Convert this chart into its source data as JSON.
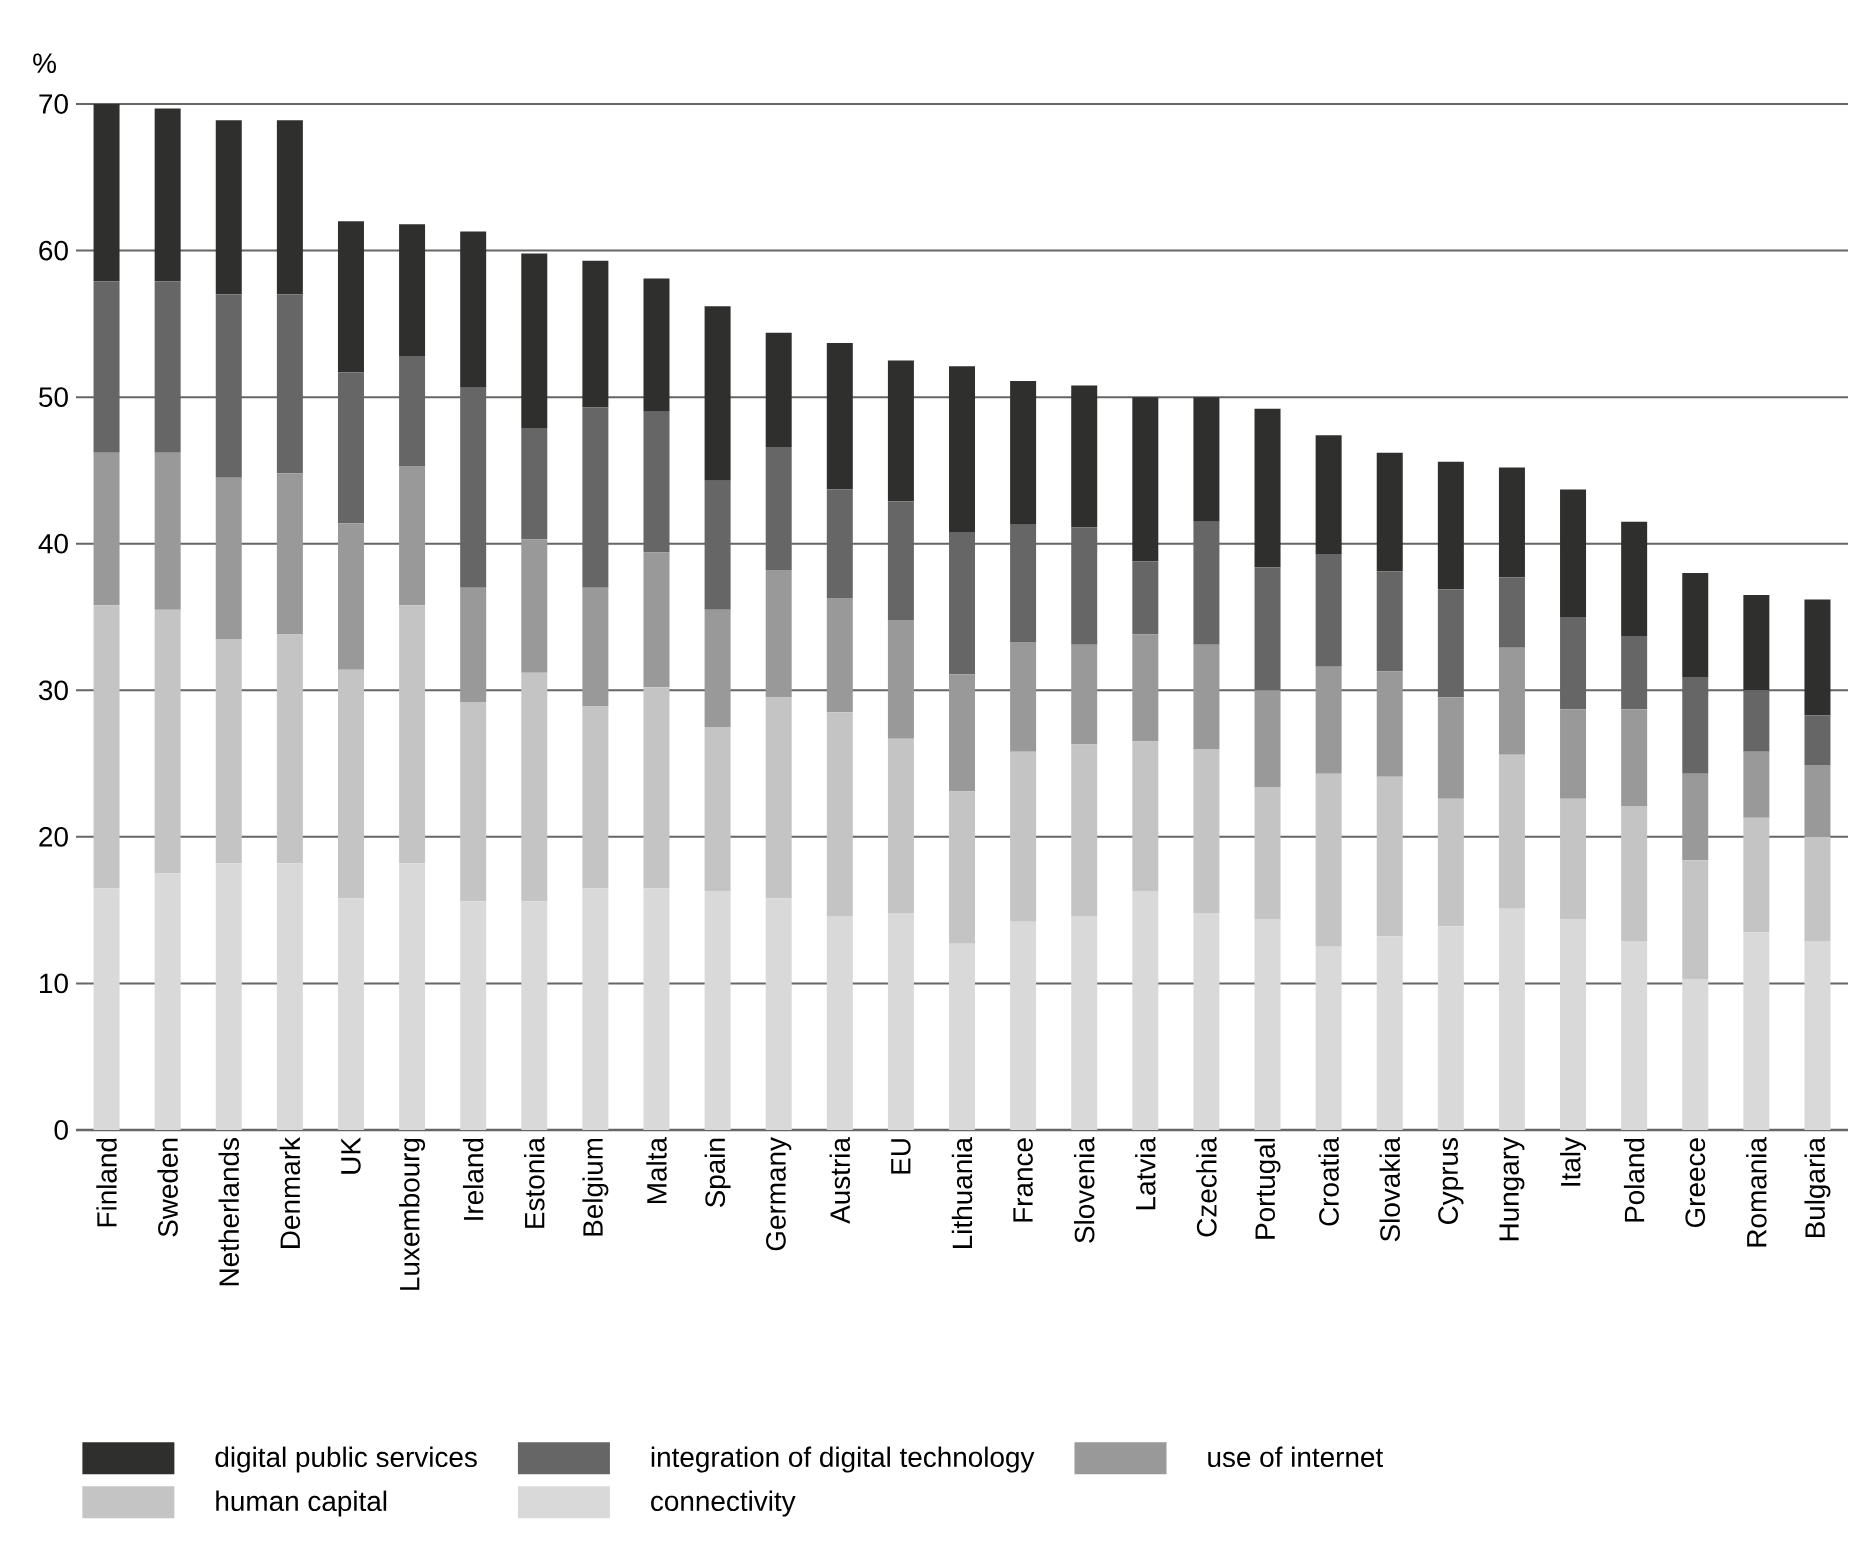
{
  "chart_data": {
    "type": "bar",
    "stacked": true,
    "ylabel": "%",
    "grid": "y",
    "legend": "bottom",
    "ylim": [
      0,
      70
    ],
    "yticks": [
      0,
      10,
      20,
      30,
      40,
      50,
      60,
      70
    ],
    "categories": [
      "Finland",
      "Sweden",
      "Netherlands",
      "Denmark",
      "UK",
      "Luxembourg",
      "Ireland",
      "Estonia",
      "Belgium",
      "Malta",
      "Spain",
      "Germany",
      "Austria",
      "EU",
      "Lithuania",
      "France",
      "Slovenia",
      "Latvia",
      "Czechia",
      "Portugal",
      "Croatia",
      "Slovakia",
      "Cyprus",
      "Hungary",
      "Italy",
      "Poland",
      "Greece",
      "Romania",
      "Bulgaria"
    ],
    "series": [
      {
        "name": "connectivity",
        "color": "#d9d9d9",
        "values": [
          16.5,
          17.5,
          18.2,
          18.2,
          15.8,
          18.2,
          15.6,
          15.6,
          16.5,
          16.5,
          16.3,
          15.8,
          14.6,
          14.8,
          12.7,
          14.2,
          14.6,
          16.3,
          14.8,
          14.4,
          12.5,
          13.2,
          13.9,
          15.1,
          14.4,
          12.9,
          10.3,
          13.5,
          12.9
        ]
      },
      {
        "name": "human capital",
        "color": "#c4c4c4",
        "values": [
          19.3,
          18.0,
          15.3,
          15.6,
          15.6,
          17.6,
          13.6,
          15.6,
          12.4,
          13.7,
          11.2,
          13.7,
          13.9,
          11.9,
          10.4,
          11.6,
          11.7,
          10.2,
          11.2,
          9.0,
          11.8,
          10.9,
          8.7,
          10.5,
          8.2,
          9.2,
          8.1,
          7.8,
          7.1
        ]
      },
      {
        "name": "use of internet",
        "color": "#999999",
        "values": [
          10.4,
          10.7,
          11.0,
          11.0,
          10.0,
          9.5,
          7.8,
          9.1,
          8.1,
          9.2,
          8.0,
          8.7,
          7.8,
          8.1,
          8.0,
          7.5,
          6.8,
          7.3,
          7.1,
          6.6,
          7.3,
          7.2,
          6.9,
          7.3,
          6.1,
          6.6,
          5.9,
          4.5,
          4.9
        ]
      },
      {
        "name": "integration of digital technology",
        "color": "#666666",
        "values": [
          11.7,
          11.7,
          12.5,
          12.2,
          10.3,
          7.5,
          13.7,
          7.6,
          12.3,
          9.6,
          8.8,
          8.4,
          7.4,
          8.1,
          9.7,
          8.0,
          8.0,
          5.0,
          8.4,
          8.4,
          7.7,
          6.8,
          7.4,
          4.8,
          6.3,
          5.0,
          6.6,
          4.2,
          3.4
        ]
      },
      {
        "name": "digital public services",
        "color": "#2f2f2d",
        "values": [
          12.1,
          11.8,
          11.9,
          11.9,
          10.3,
          9.0,
          10.6,
          11.9,
          10.0,
          9.1,
          11.9,
          7.8,
          10.0,
          9.6,
          11.3,
          9.8,
          9.7,
          11.2,
          8.5,
          10.8,
          8.1,
          8.1,
          8.7,
          7.5,
          8.7,
          7.8,
          7.1,
          6.5,
          7.9
        ]
      }
    ]
  }
}
